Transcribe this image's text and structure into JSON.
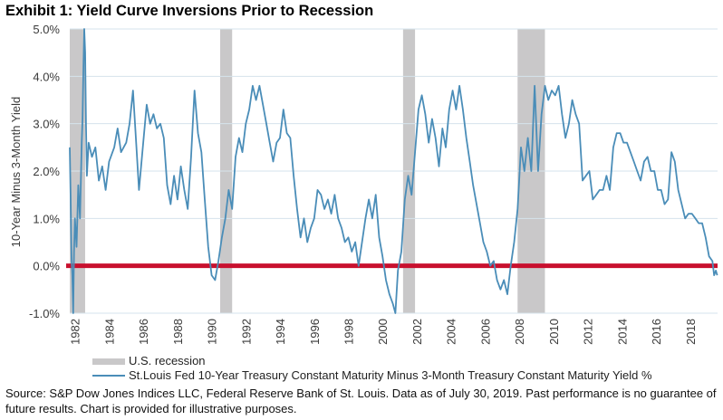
{
  "title": "Exhibit 1: Yield Curve Inversions Prior to Recession",
  "legend": {
    "recession_label": "U.S. recession",
    "series_label": "St.Louis Fed 10-Year Treasury Constant Maturity Minus 3-Month Treasury Constant Maturity Yield %"
  },
  "source": "Source: S&P Dow Jones Indices LLC, Federal Reserve Bank of St. Louis. Data as of July 30, 2019. Past performance is no guarantee of future results. Chart is provided for illustrative purposes.",
  "colors": {
    "series": "#4a8db8",
    "zero_line": "#c8102e",
    "recession": "#c9c8c9",
    "grid": "#d6e3ec"
  },
  "chart_data": {
    "type": "line",
    "title": "Exhibit 1: Yield Curve Inversions Prior to Recession",
    "xlabel": "",
    "ylabel": "10-Year Minus 3-Month Yield",
    "xlim": [
      1981.7,
      2019.6
    ],
    "ylim": [
      -1.0,
      5.0
    ],
    "grid": true,
    "legend_position": "bottom-left",
    "y_ticks": [
      5.0,
      4.0,
      3.0,
      2.0,
      1.0,
      0.0,
      -1.0
    ],
    "y_tick_labels": [
      "5.0%",
      "4.0%",
      "3.0%",
      "2.0%",
      "1.0%",
      "0.0%",
      "-1.0%"
    ],
    "x_ticks": [
      1982,
      1984,
      1986,
      1988,
      1990,
      1992,
      1994,
      1996,
      1998,
      2000,
      2002,
      2004,
      2006,
      2008,
      2010,
      2012,
      2014,
      2016,
      2018
    ],
    "x_tick_labels": [
      "1982",
      "1984",
      "1986",
      "1988",
      "1990",
      "1992",
      "1994",
      "1996",
      "1998",
      "2000",
      "2002",
      "2004",
      "2006",
      "2008",
      "2010",
      "2012",
      "2014",
      "2016",
      "2018"
    ],
    "reference_line": {
      "name": "zero",
      "y": 0.0
    },
    "recessions": [
      {
        "start": 1981.7,
        "end": 1982.6
      },
      {
        "start": 1990.5,
        "end": 1991.2
      },
      {
        "start": 2001.2,
        "end": 2001.9
      },
      {
        "start": 2007.9,
        "end": 2009.5
      }
    ],
    "series": [
      {
        "name": "St.Louis Fed 10-Year Treasury Constant Maturity Minus 3-Month Treasury Constant Maturity Yield %",
        "points": [
          [
            1981.7,
            2.5
          ],
          [
            1981.75,
            1.5
          ],
          [
            1981.8,
            0.2
          ],
          [
            1981.85,
            -0.2
          ],
          [
            1981.9,
            -1.0
          ],
          [
            1981.95,
            0.3
          ],
          [
            1982.0,
            1.0
          ],
          [
            1982.1,
            0.4
          ],
          [
            1982.2,
            1.7
          ],
          [
            1982.3,
            1.0
          ],
          [
            1982.4,
            2.6
          ],
          [
            1982.45,
            3.1
          ],
          [
            1982.5,
            4.2
          ],
          [
            1982.55,
            5.0
          ],
          [
            1982.6,
            4.5
          ],
          [
            1982.65,
            3.0
          ],
          [
            1982.7,
            1.9
          ],
          [
            1982.8,
            2.6
          ],
          [
            1983.0,
            2.3
          ],
          [
            1983.2,
            2.5
          ],
          [
            1983.4,
            1.8
          ],
          [
            1983.6,
            2.1
          ],
          [
            1983.8,
            1.6
          ],
          [
            1984.0,
            2.2
          ],
          [
            1984.3,
            2.5
          ],
          [
            1984.5,
            2.9
          ],
          [
            1984.7,
            2.4
          ],
          [
            1985.0,
            2.6
          ],
          [
            1985.2,
            3.0
          ],
          [
            1985.4,
            3.7
          ],
          [
            1985.6,
            2.5
          ],
          [
            1985.75,
            1.6
          ],
          [
            1986.0,
            2.6
          ],
          [
            1986.2,
            3.4
          ],
          [
            1986.4,
            3.0
          ],
          [
            1986.6,
            3.2
          ],
          [
            1986.8,
            2.9
          ],
          [
            1987.0,
            3.0
          ],
          [
            1987.2,
            2.7
          ],
          [
            1987.4,
            1.7
          ],
          [
            1987.6,
            1.3
          ],
          [
            1987.8,
            1.9
          ],
          [
            1988.0,
            1.4
          ],
          [
            1988.2,
            2.1
          ],
          [
            1988.4,
            1.6
          ],
          [
            1988.6,
            1.2
          ],
          [
            1988.8,
            2.3
          ],
          [
            1989.0,
            3.7
          ],
          [
            1989.2,
            2.8
          ],
          [
            1989.4,
            2.4
          ],
          [
            1989.6,
            1.4
          ],
          [
            1989.8,
            0.4
          ],
          [
            1990.0,
            -0.2
          ],
          [
            1990.2,
            -0.3
          ],
          [
            1990.4,
            0.1
          ],
          [
            1990.6,
            0.6
          ],
          [
            1990.8,
            1.0
          ],
          [
            1991.0,
            1.6
          ],
          [
            1991.2,
            1.2
          ],
          [
            1991.4,
            2.3
          ],
          [
            1991.6,
            2.7
          ],
          [
            1991.8,
            2.4
          ],
          [
            1992.0,
            3.0
          ],
          [
            1992.2,
            3.3
          ],
          [
            1992.4,
            3.8
          ],
          [
            1992.6,
            3.5
          ],
          [
            1992.8,
            3.8
          ],
          [
            1993.0,
            3.4
          ],
          [
            1993.2,
            3.0
          ],
          [
            1993.4,
            2.6
          ],
          [
            1993.6,
            2.2
          ],
          [
            1993.8,
            2.6
          ],
          [
            1994.0,
            2.7
          ],
          [
            1994.2,
            3.3
          ],
          [
            1994.4,
            2.8
          ],
          [
            1994.6,
            2.7
          ],
          [
            1994.8,
            1.9
          ],
          [
            1995.0,
            1.2
          ],
          [
            1995.2,
            0.6
          ],
          [
            1995.4,
            1.0
          ],
          [
            1995.6,
            0.5
          ],
          [
            1995.8,
            0.8
          ],
          [
            1996.0,
            1.0
          ],
          [
            1996.2,
            1.6
          ],
          [
            1996.4,
            1.5
          ],
          [
            1996.6,
            1.2
          ],
          [
            1996.8,
            1.4
          ],
          [
            1997.0,
            1.1
          ],
          [
            1997.2,
            1.5
          ],
          [
            1997.4,
            1.0
          ],
          [
            1997.6,
            0.8
          ],
          [
            1997.8,
            0.5
          ],
          [
            1998.0,
            0.6
          ],
          [
            1998.2,
            0.3
          ],
          [
            1998.4,
            0.5
          ],
          [
            1998.6,
            0.0
          ],
          [
            1998.8,
            0.5
          ],
          [
            1999.0,
            1.0
          ],
          [
            1999.2,
            1.4
          ],
          [
            1999.4,
            1.0
          ],
          [
            1999.6,
            1.5
          ],
          [
            1999.8,
            0.6
          ],
          [
            2000.0,
            0.2
          ],
          [
            2000.2,
            -0.3
          ],
          [
            2000.4,
            -0.6
          ],
          [
            2000.6,
            -0.8
          ],
          [
            2000.75,
            -1.0
          ],
          [
            2000.9,
            -0.1
          ],
          [
            2001.1,
            0.3
          ],
          [
            2001.3,
            1.4
          ],
          [
            2001.5,
            1.9
          ],
          [
            2001.7,
            1.5
          ],
          [
            2001.9,
            2.4
          ],
          [
            2002.1,
            3.3
          ],
          [
            2002.3,
            3.6
          ],
          [
            2002.5,
            3.2
          ],
          [
            2002.7,
            2.6
          ],
          [
            2002.9,
            3.1
          ],
          [
            2003.1,
            2.7
          ],
          [
            2003.3,
            2.1
          ],
          [
            2003.5,
            2.9
          ],
          [
            2003.7,
            2.5
          ],
          [
            2003.9,
            3.3
          ],
          [
            2004.1,
            3.7
          ],
          [
            2004.3,
            3.3
          ],
          [
            2004.5,
            3.8
          ],
          [
            2004.7,
            3.3
          ],
          [
            2004.9,
            2.7
          ],
          [
            2005.1,
            2.2
          ],
          [
            2005.3,
            1.7
          ],
          [
            2005.5,
            1.3
          ],
          [
            2005.7,
            0.9
          ],
          [
            2005.9,
            0.5
          ],
          [
            2006.1,
            0.3
          ],
          [
            2006.3,
            0.0
          ],
          [
            2006.5,
            0.1
          ],
          [
            2006.7,
            -0.3
          ],
          [
            2006.9,
            -0.5
          ],
          [
            2007.1,
            -0.3
          ],
          [
            2007.3,
            -0.6
          ],
          [
            2007.5,
            0.0
          ],
          [
            2007.7,
            0.5
          ],
          [
            2007.9,
            1.2
          ],
          [
            2008.1,
            2.5
          ],
          [
            2008.3,
            2.0
          ],
          [
            2008.5,
            2.7
          ],
          [
            2008.7,
            2.0
          ],
          [
            2008.9,
            3.8
          ],
          [
            2009.1,
            2.0
          ],
          [
            2009.3,
            3.2
          ],
          [
            2009.5,
            3.8
          ],
          [
            2009.7,
            3.5
          ],
          [
            2009.9,
            3.7
          ],
          [
            2010.1,
            3.6
          ],
          [
            2010.3,
            3.8
          ],
          [
            2010.5,
            3.2
          ],
          [
            2010.7,
            2.7
          ],
          [
            2010.9,
            3.0
          ],
          [
            2011.1,
            3.5
          ],
          [
            2011.3,
            3.2
          ],
          [
            2011.5,
            3.0
          ],
          [
            2011.7,
            1.8
          ],
          [
            2011.9,
            1.9
          ],
          [
            2012.1,
            2.0
          ],
          [
            2012.3,
            1.4
          ],
          [
            2012.5,
            1.5
          ],
          [
            2012.7,
            1.6
          ],
          [
            2012.9,
            1.6
          ],
          [
            2013.1,
            1.9
          ],
          [
            2013.3,
            1.6
          ],
          [
            2013.5,
            2.5
          ],
          [
            2013.7,
            2.8
          ],
          [
            2013.9,
            2.8
          ],
          [
            2014.1,
            2.6
          ],
          [
            2014.3,
            2.6
          ],
          [
            2014.5,
            2.4
          ],
          [
            2014.7,
            2.2
          ],
          [
            2014.9,
            2.0
          ],
          [
            2015.1,
            1.8
          ],
          [
            2015.3,
            2.2
          ],
          [
            2015.5,
            2.3
          ],
          [
            2015.7,
            2.0
          ],
          [
            2015.9,
            2.0
          ],
          [
            2016.1,
            1.6
          ],
          [
            2016.3,
            1.6
          ],
          [
            2016.5,
            1.3
          ],
          [
            2016.7,
            1.4
          ],
          [
            2016.9,
            2.4
          ],
          [
            2017.1,
            2.2
          ],
          [
            2017.3,
            1.6
          ],
          [
            2017.5,
            1.3
          ],
          [
            2017.7,
            1.0
          ],
          [
            2017.9,
            1.1
          ],
          [
            2018.1,
            1.1
          ],
          [
            2018.3,
            1.0
          ],
          [
            2018.5,
            0.9
          ],
          [
            2018.7,
            0.9
          ],
          [
            2018.9,
            0.6
          ],
          [
            2019.1,
            0.2
          ],
          [
            2019.3,
            0.1
          ],
          [
            2019.4,
            -0.2
          ],
          [
            2019.5,
            -0.1
          ],
          [
            2019.58,
            -0.2
          ]
        ]
      }
    ]
  }
}
